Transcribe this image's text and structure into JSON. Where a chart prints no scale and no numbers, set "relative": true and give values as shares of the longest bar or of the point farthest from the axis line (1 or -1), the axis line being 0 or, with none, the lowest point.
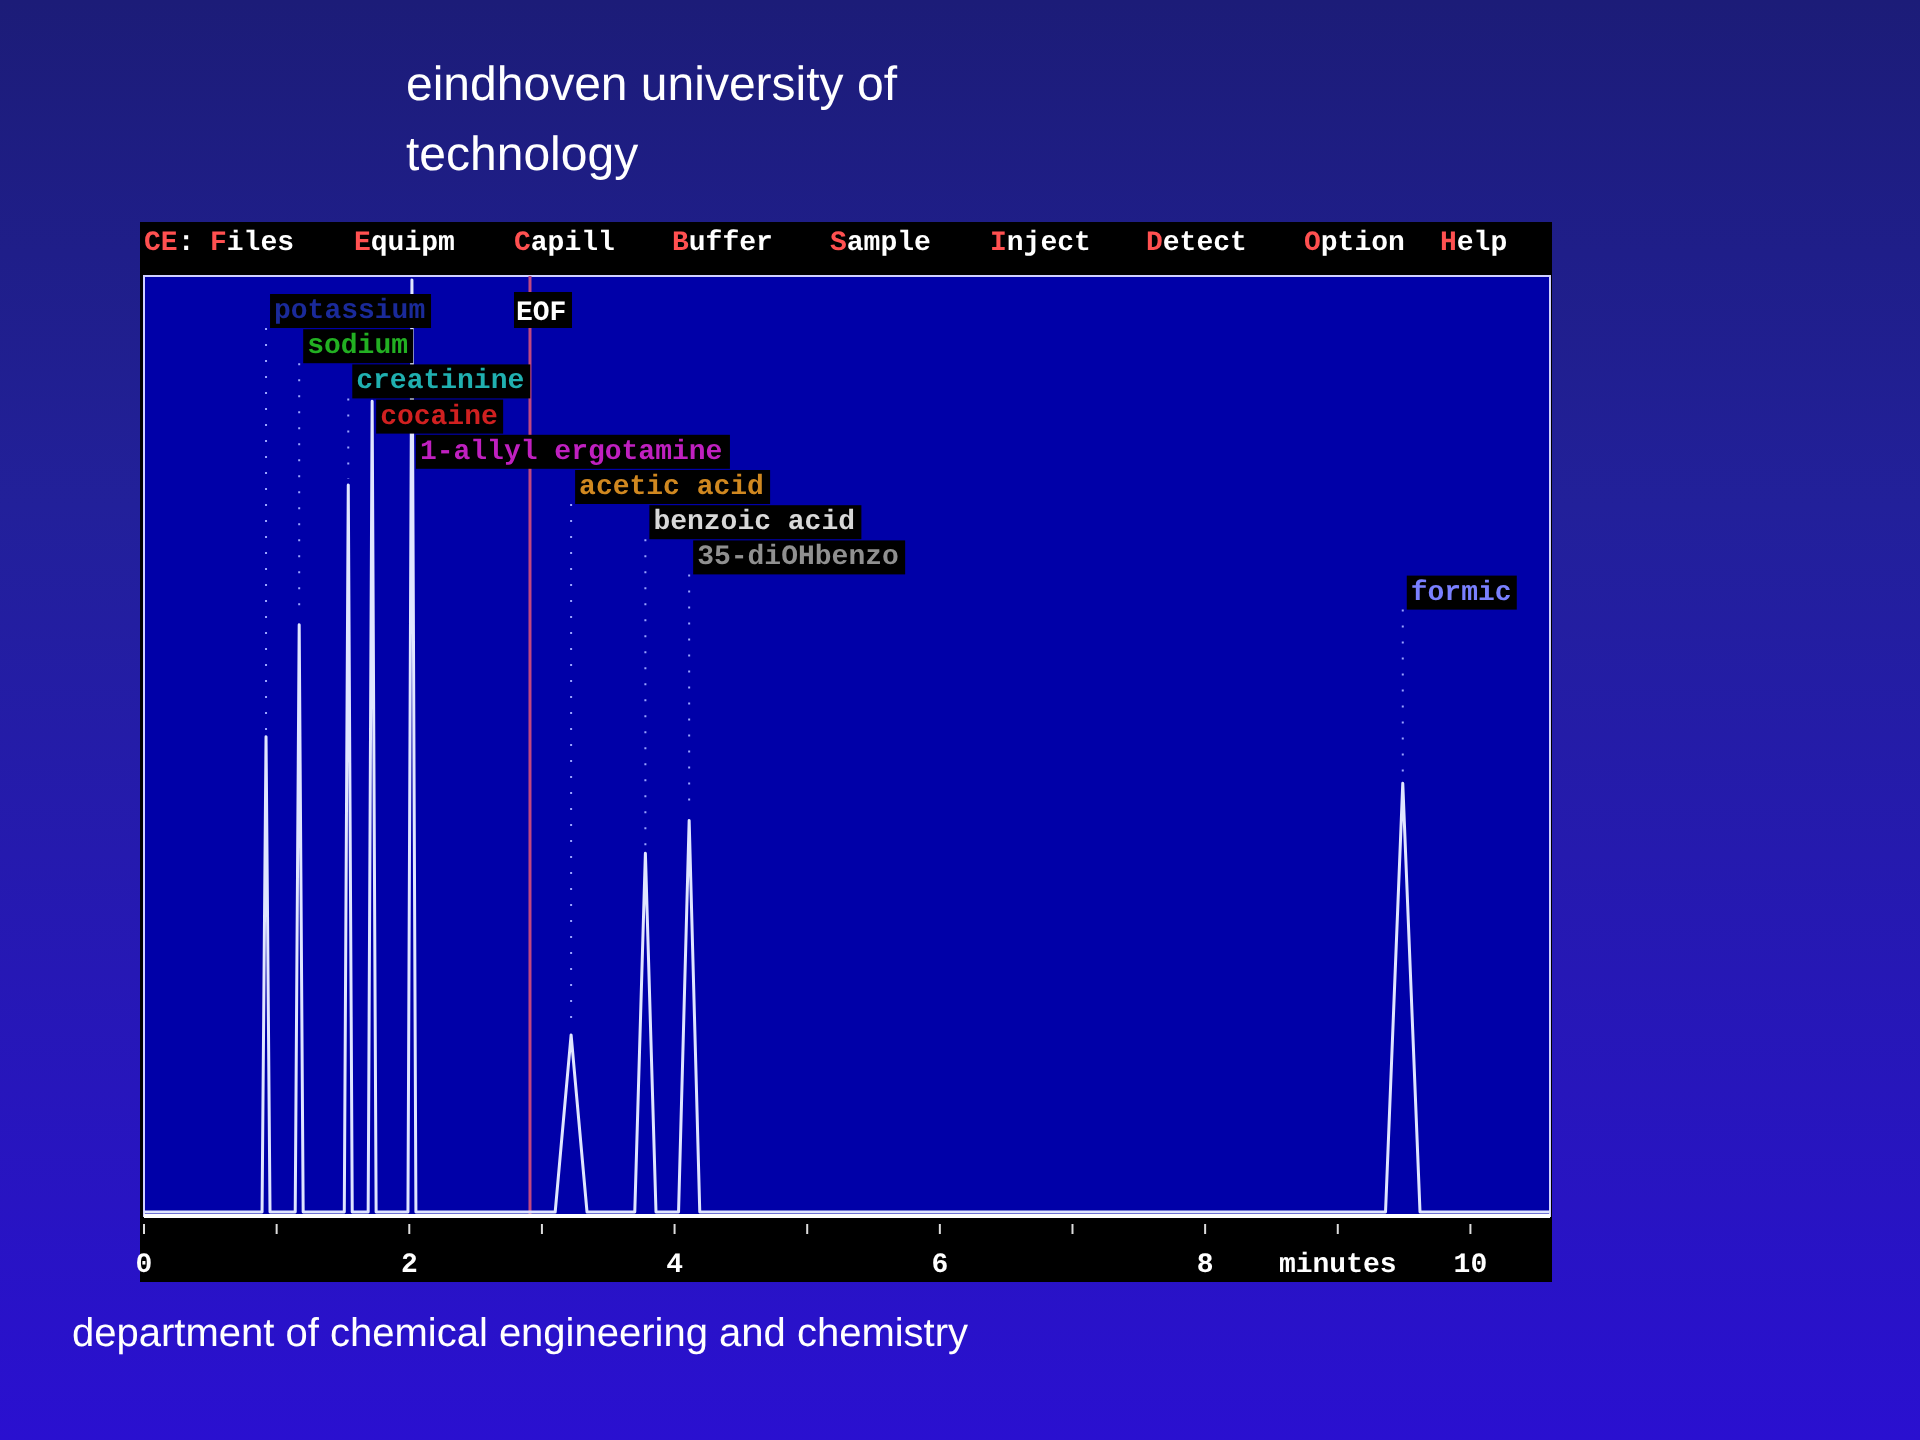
{
  "chart_data": {
    "type": "line",
    "title": "eindhoven university of technology",
    "xlabel": "minutes",
    "relative": true,
    "xlim": [
      0,
      10.6
    ],
    "xticks": [
      0,
      {
        "value": 1,
        "label": null
      },
      2,
      {
        "value": 3,
        "label": null
      },
      4,
      {
        "value": 5,
        "label": null
      },
      6,
      {
        "value": 7,
        "label": null
      },
      8,
      {
        "value": 9,
        "label": null
      },
      10
    ],
    "series": [
      {
        "color": "#e0e6ff",
        "x": [
          0,
          0.89,
          0.92,
          0.95,
          1.14,
          1.17,
          1.2,
          1.51,
          1.54,
          1.57,
          1.69,
          1.72,
          1.75,
          1.99,
          2.02,
          2.05,
          3.1,
          3.22,
          3.34,
          3.7,
          3.78,
          3.86,
          4.03,
          4.11,
          4.19,
          9.36,
          9.49,
          9.62,
          10.6
        ],
        "values": [
          0,
          0,
          0.51,
          0,
          0,
          0.63,
          0,
          0,
          0.78,
          0,
          0,
          0.87,
          0,
          0,
          1,
          0,
          0,
          0.19,
          0,
          0,
          0.385,
          0,
          0,
          0.42,
          0,
          0,
          0.46,
          0,
          0
        ]
      }
    ],
    "ref_lines": [
      {
        "axis": "x",
        "value": 2.91,
        "label": "EOF",
        "color": "#c04880"
      }
    ],
    "annotations": [
      "CE: Files Equipm Capill Buffer Sample Inject Detect Option Help",
      "department of chemical engineering and chemistry",
      {
        "text": "potassium",
        "x": 0.92,
        "y": 0.51
      },
      {
        "text": "sodium",
        "x": 1.17,
        "y": 0.63
      },
      {
        "text": "creatinine",
        "x": 1.54,
        "y": 0.78
      },
      {
        "text": "cocaine",
        "x": 1.72,
        "y": 0.87
      },
      {
        "text": "1-allyl ergotamine",
        "x": 2.02,
        "y": 0.82
      },
      {
        "text": "acetic acid",
        "x": 3.22,
        "y": 0.19
      },
      {
        "text": "benzoic acid",
        "x": 3.78,
        "y": 0.385
      },
      {
        "text": "35-diOHbenzo",
        "x": 4.11,
        "y": 0.42
      },
      {
        "text": "formic",
        "x": 9.49,
        "y": 0.46
      }
    ],
    "grid": false,
    "marker": "none",
    "line_style": "solid"
  }
}
